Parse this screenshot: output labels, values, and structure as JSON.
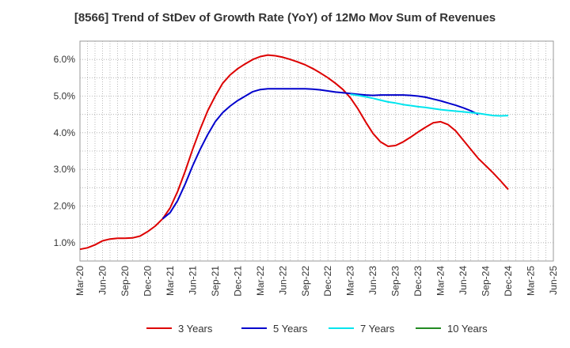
{
  "chart_data": {
    "type": "line",
    "title": "[8566]  Trend of StDev of Growth Rate (YoY) of 12Mo Mov Sum of Revenues",
    "xlabel": "",
    "ylabel": "",
    "ylim": [
      0.5,
      6.5
    ],
    "yticks": [
      1.0,
      2.0,
      3.0,
      4.0,
      5.0,
      6.0
    ],
    "ytick_labels": [
      "1.0%",
      "2.0%",
      "3.0%",
      "4.0%",
      "5.0%",
      "6.0%"
    ],
    "xtick_labels": [
      "Mar-20",
      "Jun-20",
      "Sep-20",
      "Dec-20",
      "Mar-21",
      "Jun-21",
      "Sep-21",
      "Dec-21",
      "Mar-22",
      "Jun-22",
      "Sep-22",
      "Dec-22",
      "Mar-23",
      "Jun-23",
      "Sep-23",
      "Dec-23",
      "Mar-24",
      "Jun-24",
      "Sep-24",
      "Dec-24",
      "Mar-25",
      "Jun-25"
    ],
    "grid": true,
    "legend_position": "bottom",
    "series": [
      {
        "name": "3 Years",
        "color": "#dd0000",
        "start_index": 0,
        "values": [
          0.82,
          0.86,
          0.94,
          1.05,
          1.1,
          1.12,
          1.12,
          1.13,
          1.18,
          1.3,
          1.45,
          1.65,
          1.95,
          2.4,
          2.95,
          3.55,
          4.1,
          4.6,
          5.0,
          5.35,
          5.58,
          5.75,
          5.88,
          6.0,
          6.08,
          6.12,
          6.1,
          6.06,
          6.0,
          5.93,
          5.85,
          5.75,
          5.63,
          5.5,
          5.35,
          5.18,
          4.95,
          4.65,
          4.3,
          3.98,
          3.75,
          3.63,
          3.65,
          3.75,
          3.88,
          4.02,
          4.15,
          4.27,
          4.3,
          4.22,
          4.05,
          3.8,
          3.55,
          3.3,
          3.1,
          2.9,
          2.68,
          2.45
        ]
      },
      {
        "name": "5 Years",
        "color": "#0000cc",
        "start_index": 11,
        "values": [
          1.65,
          1.82,
          2.15,
          2.6,
          3.1,
          3.55,
          3.95,
          4.3,
          4.55,
          4.73,
          4.88,
          5.0,
          5.12,
          5.18,
          5.2,
          5.2,
          5.2,
          5.2,
          5.2,
          5.2,
          5.19,
          5.17,
          5.14,
          5.11,
          5.09,
          5.07,
          5.05,
          5.03,
          5.02,
          5.03,
          5.03,
          5.03,
          5.03,
          5.02,
          5.0,
          4.97,
          4.92,
          4.87,
          4.81,
          4.75,
          4.68,
          4.6,
          4.5
        ]
      },
      {
        "name": "7 Years",
        "color": "#00e5ee",
        "start_index": 36,
        "values": [
          5.05,
          5.02,
          4.98,
          4.94,
          4.89,
          4.84,
          4.81,
          4.77,
          4.74,
          4.71,
          4.69,
          4.66,
          4.63,
          4.61,
          4.59,
          4.57,
          4.55,
          4.53,
          4.5,
          4.47,
          4.46,
          4.47
        ]
      },
      {
        "name": "10 Years",
        "color": "#228b22",
        "start_index": 0,
        "values": []
      }
    ]
  }
}
